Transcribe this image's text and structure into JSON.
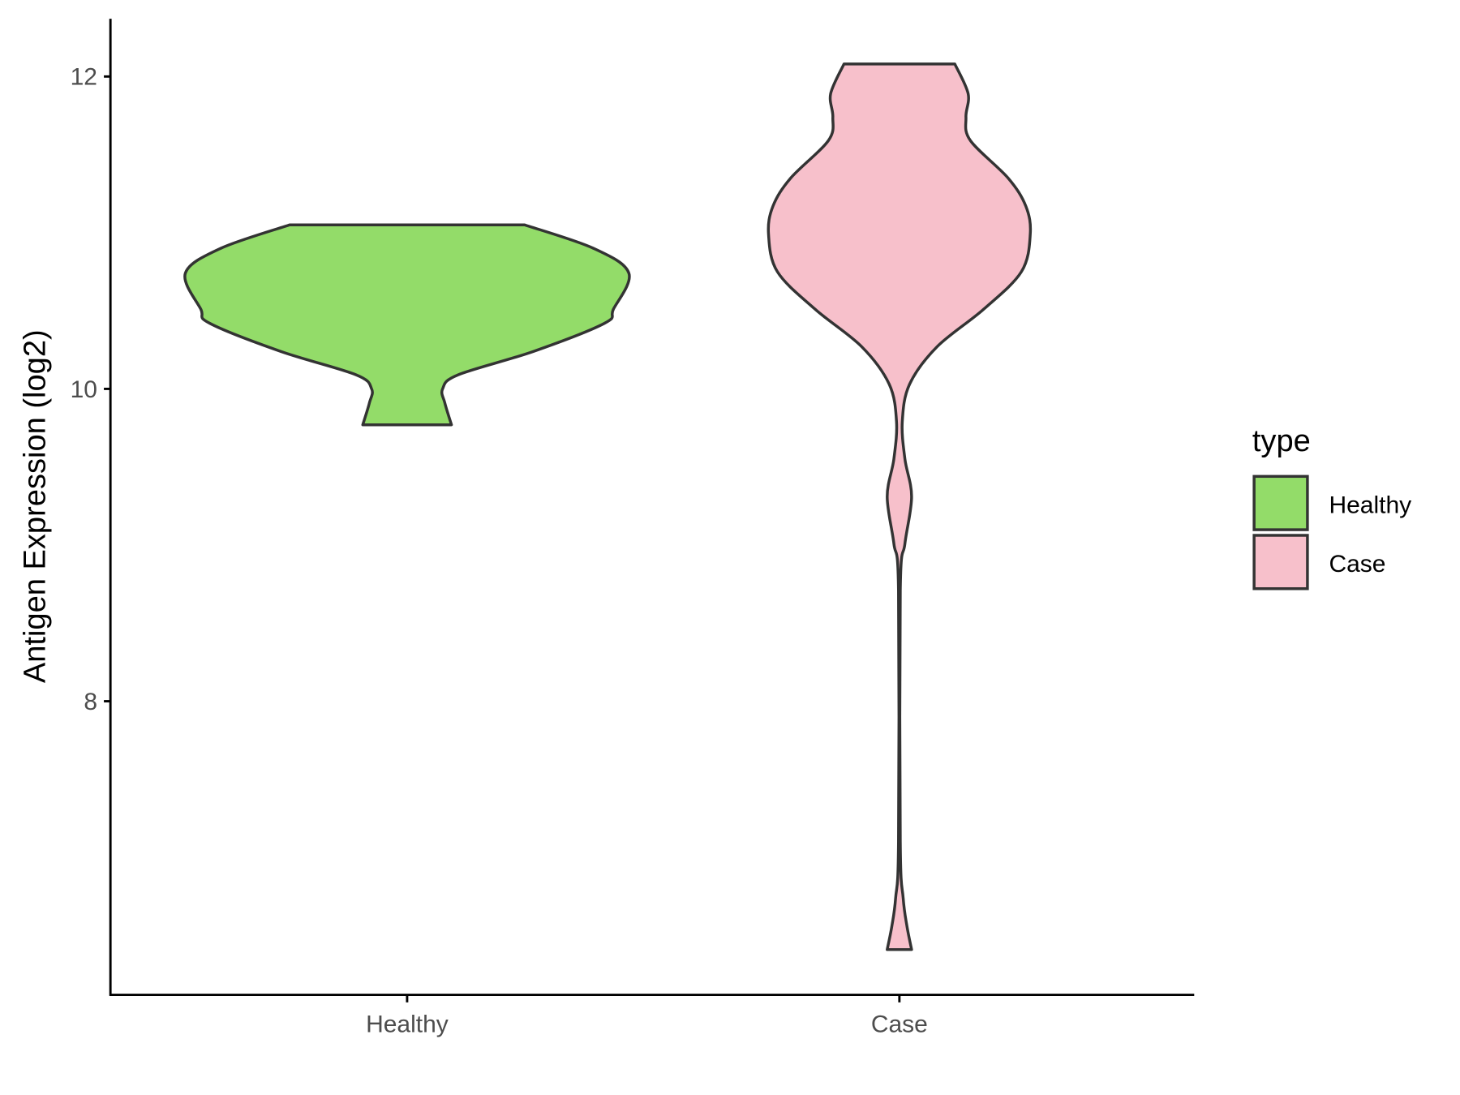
{
  "chart_data": {
    "type": "violin",
    "title": "",
    "xlabel": "",
    "ylabel": "Antigen Expression (log2)",
    "ylim": [
      6.12,
      12.37
    ],
    "yticks": [
      8,
      10,
      12
    ],
    "ytick_labels": [
      "8",
      "10",
      "12"
    ],
    "categories": [
      "Healthy",
      "Case"
    ],
    "grid": false,
    "legend": {
      "title": "type",
      "position": "right",
      "entries": [
        "Healthy",
        "Case"
      ]
    },
    "series": [
      {
        "name": "Healthy",
        "color": "#93DC69",
        "range": [
          9.77,
          11.05
        ],
        "density_profile": [
          [
            11.05,
            0.53
          ],
          [
            10.9,
            0.84
          ],
          [
            10.74,
            1.0
          ],
          [
            10.51,
            0.93
          ],
          [
            10.42,
            0.89
          ],
          [
            10.24,
            0.57
          ],
          [
            10.09,
            0.23
          ],
          [
            10.0,
            0.16
          ],
          [
            9.91,
            0.17
          ],
          [
            9.77,
            0.2
          ]
        ]
      },
      {
        "name": "Case",
        "color": "#F7C0CB",
        "range": [
          6.41,
          12.08
        ],
        "density_profile": [
          [
            12.08,
            0.25
          ],
          [
            11.89,
            0.31
          ],
          [
            11.74,
            0.3
          ],
          [
            11.59,
            0.32
          ],
          [
            11.35,
            0.49
          ],
          [
            11.17,
            0.57
          ],
          [
            10.99,
            0.59
          ],
          [
            10.75,
            0.55
          ],
          [
            10.51,
            0.38
          ],
          [
            10.27,
            0.17
          ],
          [
            10.03,
            0.046
          ],
          [
            9.79,
            0.013
          ],
          [
            9.55,
            0.025
          ],
          [
            9.31,
            0.055
          ],
          [
            9.01,
            0.025
          ],
          [
            8.71,
            0.004
          ],
          [
            7.1,
            0.004
          ],
          [
            6.74,
            0.017
          ],
          [
            6.56,
            0.034
          ],
          [
            6.41,
            0.055
          ]
        ]
      }
    ],
    "outline_color": "#333333"
  }
}
